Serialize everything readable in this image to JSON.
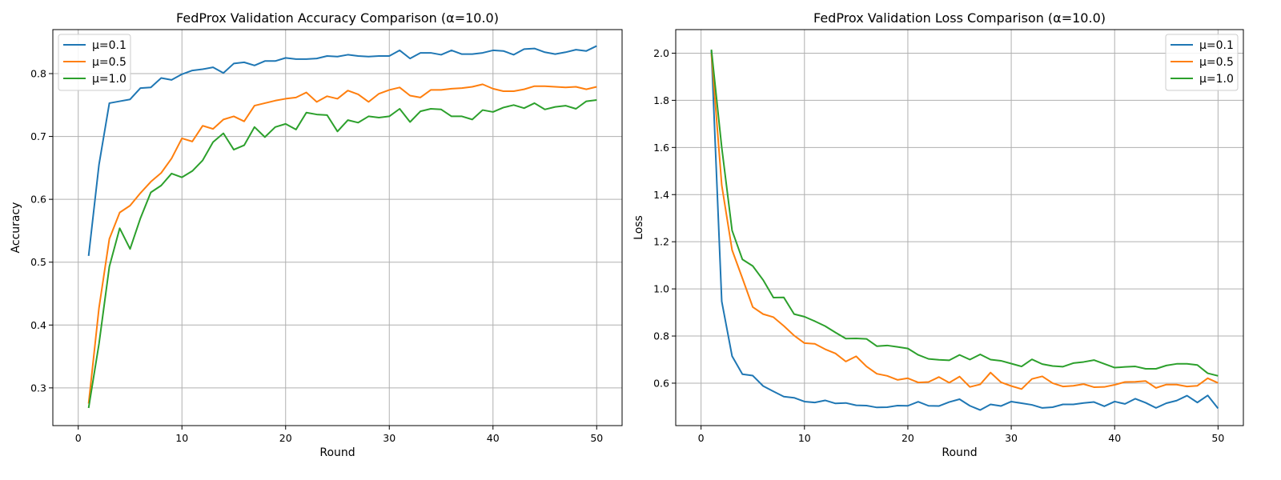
{
  "chart_data": [
    {
      "type": "line",
      "title": "FedProx Validation Accuracy Comparison (α=10.0)",
      "xlabel": "Round",
      "ylabel": "Accuracy",
      "xlim": [
        -2.45,
        52.45
      ],
      "ylim": [
        0.24,
        0.87
      ],
      "xticks": [
        0,
        10,
        20,
        30,
        40,
        50
      ],
      "yticks": [
        0.3,
        0.4,
        0.5,
        0.6,
        0.7,
        0.8
      ],
      "xtick_labels": [
        "0",
        "10",
        "20",
        "30",
        "40",
        "50"
      ],
      "ytick_labels": [
        "0.3",
        "0.4",
        "0.5",
        "0.6",
        "0.7",
        "0.8"
      ],
      "grid": true,
      "legend_loc": "upper-left",
      "x": [
        1,
        2,
        3,
        4,
        5,
        6,
        7,
        8,
        9,
        10,
        11,
        12,
        13,
        14,
        15,
        16,
        17,
        18,
        19,
        20,
        21,
        22,
        23,
        24,
        25,
        26,
        27,
        28,
        29,
        30,
        31,
        32,
        33,
        34,
        35,
        36,
        37,
        38,
        39,
        40,
        41,
        42,
        43,
        44,
        45,
        46,
        47,
        48,
        49,
        50
      ],
      "series": [
        {
          "name": "μ=0.1",
          "color": "#1f77b4",
          "values": [
            0.51,
            0.655,
            0.753,
            0.756,
            0.759,
            0.777,
            0.778,
            0.793,
            0.79,
            0.799,
            0.805,
            0.807,
            0.81,
            0.801,
            0.816,
            0.818,
            0.813,
            0.82,
            0.82,
            0.825,
            0.823,
            0.823,
            0.824,
            0.828,
            0.827,
            0.83,
            0.828,
            0.827,
            0.828,
            0.828,
            0.837,
            0.824,
            0.833,
            0.833,
            0.83,
            0.837,
            0.831,
            0.831,
            0.833,
            0.837,
            0.836,
            0.83,
            0.839,
            0.84,
            0.834,
            0.831,
            0.834,
            0.838,
            0.836,
            0.844
          ]
        },
        {
          "name": "μ=0.5",
          "color": "#ff7f0e",
          "values": [
            0.275,
            0.427,
            0.537,
            0.579,
            0.59,
            0.61,
            0.628,
            0.642,
            0.665,
            0.697,
            0.692,
            0.717,
            0.712,
            0.727,
            0.732,
            0.724,
            0.749,
            0.753,
            0.757,
            0.76,
            0.762,
            0.77,
            0.755,
            0.764,
            0.76,
            0.773,
            0.767,
            0.755,
            0.768,
            0.774,
            0.778,
            0.765,
            0.762,
            0.774,
            0.774,
            0.776,
            0.777,
            0.779,
            0.783,
            0.776,
            0.772,
            0.772,
            0.775,
            0.78,
            0.78,
            0.779,
            0.778,
            0.779,
            0.775,
            0.779
          ]
        },
        {
          "name": "μ=1.0",
          "color": "#2ca02c",
          "values": [
            0.268,
            0.37,
            0.493,
            0.554,
            0.521,
            0.57,
            0.611,
            0.622,
            0.641,
            0.635,
            0.645,
            0.662,
            0.691,
            0.705,
            0.679,
            0.686,
            0.715,
            0.699,
            0.715,
            0.72,
            0.711,
            0.738,
            0.735,
            0.734,
            0.708,
            0.726,
            0.722,
            0.732,
            0.73,
            0.732,
            0.744,
            0.723,
            0.74,
            0.744,
            0.743,
            0.732,
            0.732,
            0.727,
            0.742,
            0.739,
            0.746,
            0.75,
            0.745,
            0.753,
            0.743,
            0.747,
            0.749,
            0.744,
            0.756,
            0.758
          ]
        }
      ]
    },
    {
      "type": "line",
      "title": "FedProx Validation Loss Comparison (α=10.0)",
      "xlabel": "Round",
      "ylabel": "Loss",
      "xlim": [
        -2.45,
        52.45
      ],
      "ylim": [
        0.42,
        2.1
      ],
      "xticks": [
        0,
        10,
        20,
        30,
        40,
        50
      ],
      "yticks": [
        0.6,
        0.8,
        1.0,
        1.2,
        1.4,
        1.6,
        1.8,
        2.0
      ],
      "xtick_labels": [
        "0",
        "10",
        "20",
        "30",
        "40",
        "50"
      ],
      "ytick_labels": [
        "0.6",
        "0.8",
        "1.0",
        "1.2",
        "1.4",
        "1.6",
        "1.8",
        "2.0"
      ],
      "grid": true,
      "legend_loc": "upper-right",
      "x": [
        1,
        2,
        3,
        4,
        5,
        6,
        7,
        8,
        9,
        10,
        11,
        12,
        13,
        14,
        15,
        16,
        17,
        18,
        19,
        20,
        21,
        22,
        23,
        24,
        25,
        26,
        27,
        28,
        29,
        30,
        31,
        32,
        33,
        34,
        35,
        36,
        37,
        38,
        39,
        40,
        41,
        42,
        43,
        44,
        45,
        46,
        47,
        48,
        49,
        50
      ],
      "series": [
        {
          "name": "μ=0.1",
          "color": "#1f77b4",
          "values": [
            2.01,
            0.947,
            0.715,
            0.638,
            0.632,
            0.588,
            0.565,
            0.543,
            0.538,
            0.522,
            0.518,
            0.527,
            0.514,
            0.516,
            0.506,
            0.505,
            0.497,
            0.498,
            0.505,
            0.504,
            0.521,
            0.504,
            0.503,
            0.52,
            0.532,
            0.504,
            0.486,
            0.51,
            0.503,
            0.522,
            0.515,
            0.508,
            0.495,
            0.498,
            0.51,
            0.51,
            0.516,
            0.52,
            0.502,
            0.522,
            0.512,
            0.534,
            0.517,
            0.495,
            0.515,
            0.526,
            0.547,
            0.518,
            0.548,
            0.493
          ]
        },
        {
          "name": "μ=0.5",
          "color": "#ff7f0e",
          "values": [
            2.0,
            1.44,
            1.165,
            1.045,
            0.923,
            0.893,
            0.88,
            0.843,
            0.802,
            0.77,
            0.767,
            0.744,
            0.726,
            0.692,
            0.714,
            0.671,
            0.64,
            0.631,
            0.614,
            0.621,
            0.603,
            0.605,
            0.626,
            0.602,
            0.628,
            0.584,
            0.595,
            0.645,
            0.604,
            0.588,
            0.575,
            0.618,
            0.629,
            0.6,
            0.586,
            0.589,
            0.596,
            0.583,
            0.584,
            0.593,
            0.605,
            0.606,
            0.609,
            0.58,
            0.594,
            0.594,
            0.586,
            0.589,
            0.621,
            0.601
          ]
        },
        {
          "name": "μ=1.0",
          "color": "#2ca02c",
          "values": [
            2.015,
            1.6,
            1.248,
            1.125,
            1.097,
            1.038,
            0.963,
            0.964,
            0.893,
            0.882,
            0.863,
            0.842,
            0.815,
            0.789,
            0.79,
            0.788,
            0.757,
            0.76,
            0.754,
            0.747,
            0.72,
            0.703,
            0.699,
            0.697,
            0.72,
            0.7,
            0.722,
            0.7,
            0.695,
            0.683,
            0.671,
            0.701,
            0.681,
            0.673,
            0.67,
            0.685,
            0.69,
            0.698,
            0.682,
            0.666,
            0.669,
            0.671,
            0.661,
            0.661,
            0.675,
            0.682,
            0.682,
            0.677,
            0.642,
            0.631
          ]
        }
      ]
    }
  ]
}
